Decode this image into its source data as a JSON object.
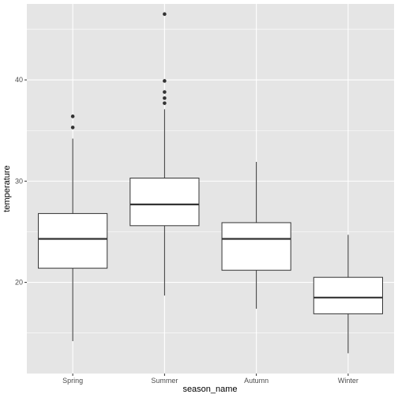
{
  "chart_data": {
    "type": "box",
    "xlabel": "season_name",
    "ylabel": "temperature",
    "ylim": [
      11,
      47.5
    ],
    "y_ticks": [
      20,
      30,
      40
    ],
    "grid": true,
    "categories": [
      "Spring",
      "Summer",
      "Autumn",
      "Winter"
    ],
    "boxes": [
      {
        "category": "Spring",
        "whisker_low": 14.2,
        "q1": 21.4,
        "median": 24.3,
        "q3": 26.8,
        "whisker_high": 34.2,
        "outliers": [
          35.3,
          36.4
        ]
      },
      {
        "category": "Summer",
        "whisker_low": 18.7,
        "q1": 25.6,
        "median": 27.7,
        "q3": 30.3,
        "whisker_high": 37.1,
        "outliers": [
          37.7,
          38.2,
          38.8,
          39.9,
          46.5
        ]
      },
      {
        "category": "Autumn",
        "whisker_low": 17.4,
        "q1": 21.2,
        "median": 24.3,
        "q3": 25.9,
        "whisker_high": 31.9,
        "outliers": []
      },
      {
        "category": "Winter",
        "whisker_low": 13.0,
        "q1": 16.9,
        "median": 18.5,
        "q3": 20.5,
        "whisker_high": 24.7,
        "outliers": []
      }
    ],
    "colors": {
      "panel_background": "#e5e5e5",
      "grid_major": "#ffffff",
      "box_fill": "#ffffff",
      "box_stroke": "#333333",
      "outlier": "#333333"
    }
  }
}
